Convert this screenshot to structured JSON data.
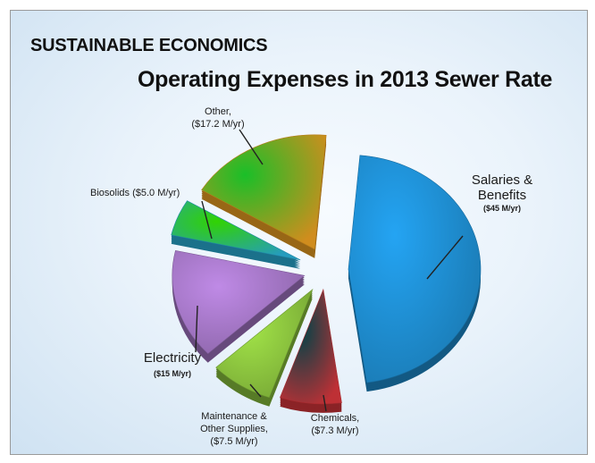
{
  "slide": {
    "header": "SUSTAINABLE ECONOMICS",
    "title": "Operating Expenses in 2013 Sewer Rate"
  },
  "chart_data": {
    "type": "pie",
    "title": "Operating Expenses in 2013 Sewer Rate",
    "unit": "M/yr",
    "exploded": true,
    "slices": [
      {
        "name": "Salaries & Benefits",
        "value": 45.0,
        "value_label": "($45 M/yr)",
        "color": "#1f8fd3"
      },
      {
        "name": "Chemicals,",
        "value": 7.3,
        "value_label": "($7.3 M/yr)",
        "color": "#e0393e"
      },
      {
        "name": "Maintenance & Other Supplies,",
        "value": 7.5,
        "value_label": "($7.5 M/yr)",
        "color": "#8dc63f"
      },
      {
        "name": "Electricity",
        "value": 15.0,
        "value_label": "($15 M/yr)",
        "color": "#a678c8"
      },
      {
        "name": "Biosolids",
        "value": 5.0,
        "value_label": "($5.0 M/yr)",
        "color": "#2bb7e0"
      },
      {
        "name": "Other,",
        "value": 17.2,
        "value_label": "($17.2 M/yr)",
        "color": "#f5a623"
      }
    ],
    "labels": [
      {
        "lines": [
          "Salaries &",
          "Benefits"
        ],
        "value_line": "($45 M/yr)"
      },
      {
        "lines": [
          "Chemicals,"
        ],
        "value_line": "($7.3 M/yr)"
      },
      {
        "lines": [
          "Maintenance &",
          "Other Supplies,"
        ],
        "value_line": "($7.5 M/yr)"
      },
      {
        "lines": [
          "Electricity"
        ],
        "value_line": "($15 M/yr)"
      },
      {
        "lines": [
          "Biosolids ($5.0 M/yr)"
        ],
        "value_line": ""
      },
      {
        "lines": [
          "Other,"
        ],
        "value_line": "($17.2 M/yr)"
      }
    ]
  }
}
